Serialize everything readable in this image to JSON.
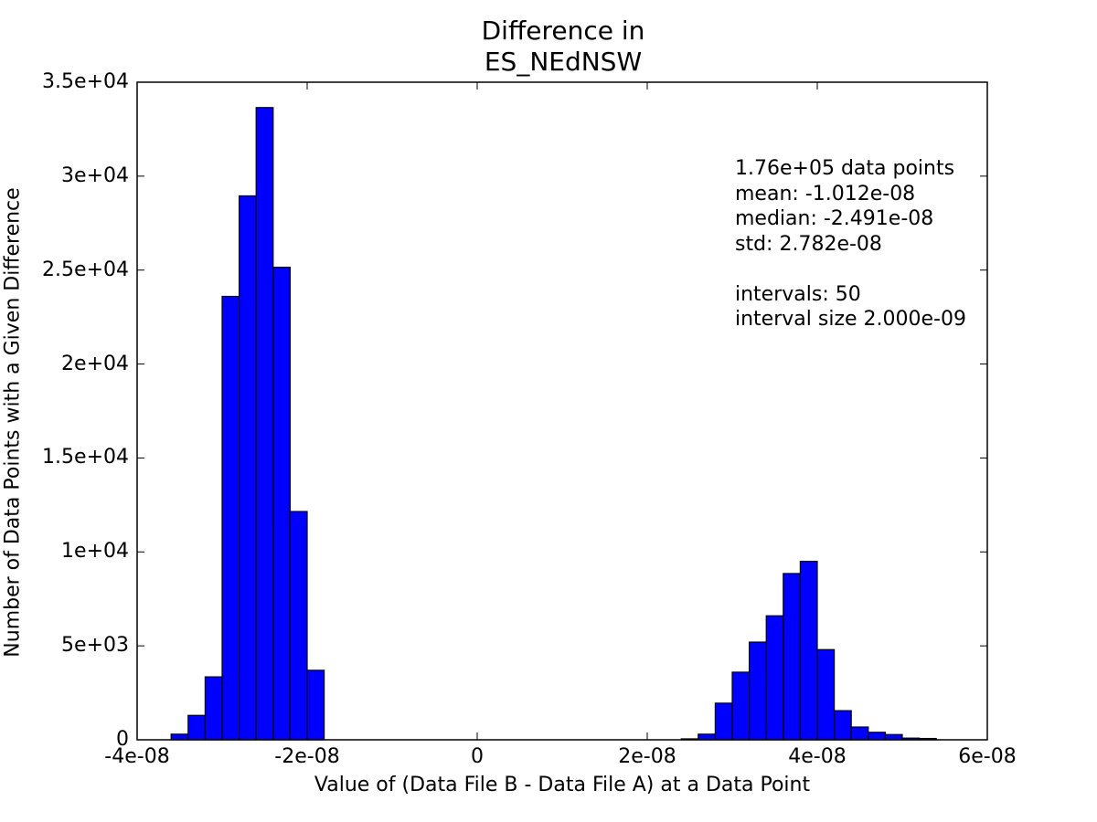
{
  "chart_data": {
    "type": "bar",
    "title_lines": [
      "Difference in",
      "ES_NEdNSW"
    ],
    "xlabel": "Value of (Data File B - Data File A) at a Data Point",
    "ylabel": "Number of Data Points with a Given Difference",
    "xlim": [
      -4e-08,
      6e-08
    ],
    "ylim": [
      0,
      35000
    ],
    "x_ticks": [
      {
        "value": -4e-08,
        "label": "-4e-08"
      },
      {
        "value": -2e-08,
        "label": "-2e-08"
      },
      {
        "value": 0,
        "label": "0"
      },
      {
        "value": 2e-08,
        "label": "2e-08"
      },
      {
        "value": 4e-08,
        "label": "4e-08"
      },
      {
        "value": 6e-08,
        "label": "6e-08"
      }
    ],
    "y_ticks": [
      {
        "value": 0,
        "label": "0"
      },
      {
        "value": 5000,
        "label": "5e+03"
      },
      {
        "value": 10000,
        "label": "1e+04"
      },
      {
        "value": 15000,
        "label": "1.5e+04"
      },
      {
        "value": 20000,
        "label": "2e+04"
      },
      {
        "value": 25000,
        "label": "2.5e+04"
      },
      {
        "value": 30000,
        "label": "3e+04"
      },
      {
        "value": 35000,
        "label": "3.5e+04"
      }
    ],
    "bin_start": -3.6e-08,
    "bin_width": 2e-09,
    "values": [
      300,
      1300,
      3350,
      23600,
      28950,
      33650,
      25150,
      12150,
      3700,
      0,
      0,
      0,
      0,
      0,
      0,
      0,
      0,
      0,
      0,
      0,
      0,
      0,
      0,
      0,
      0,
      0,
      0,
      0,
      0,
      0,
      50,
      300,
      1950,
      3600,
      5200,
      6600,
      8850,
      9500,
      4800,
      1550,
      680,
      400,
      280,
      90,
      70
    ],
    "bar_color": "#0000ff",
    "edge_color": "#000000",
    "annotation_lines": [
      "1.76e+05 data points",
      "mean: -1.012e-08",
      "median: -2.491e-08",
      "std: 2.782e-08",
      "",
      "intervals: 50",
      "interval size 2.000e-09"
    ]
  }
}
